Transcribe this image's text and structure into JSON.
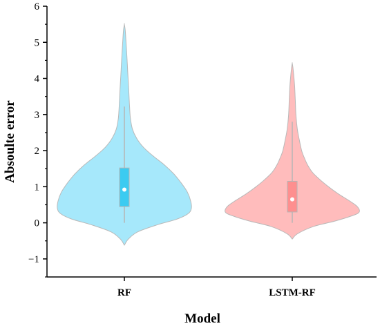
{
  "chart_data": {
    "type": "violin",
    "xlabel": "Model",
    "ylabel": "Absoulte error",
    "ylim": [
      -1.5,
      6
    ],
    "yticks": [
      -1,
      0,
      1,
      2,
      3,
      4,
      5,
      6
    ],
    "ytick_labels": [
      "−1",
      "0",
      "1",
      "2",
      "3",
      "4",
      "5",
      "6"
    ],
    "grid": false,
    "categories": [
      "RF",
      "LSTM-RF"
    ],
    "series": [
      {
        "category": "RF",
        "color": "#a6e8fb",
        "box_color": "#3ccbf1",
        "median": 0.92,
        "q1": 0.45,
        "q3": 1.52,
        "whisker_low": 0.0,
        "whisker_high": 3.22,
        "min": -0.62,
        "max": 5.5,
        "density": [
          [
            -0.62,
            0.0
          ],
          [
            -0.45,
            0.06
          ],
          [
            -0.25,
            0.2
          ],
          [
            -0.05,
            0.5
          ],
          [
            0.1,
            0.78
          ],
          [
            0.25,
            0.95
          ],
          [
            0.4,
            1.0
          ],
          [
            0.6,
            0.99
          ],
          [
            0.85,
            0.94
          ],
          [
            1.1,
            0.85
          ],
          [
            1.35,
            0.74
          ],
          [
            1.6,
            0.6
          ],
          [
            1.85,
            0.43
          ],
          [
            2.1,
            0.28
          ],
          [
            2.35,
            0.18
          ],
          [
            2.6,
            0.12
          ],
          [
            2.9,
            0.09
          ],
          [
            3.3,
            0.075
          ],
          [
            3.7,
            0.065
          ],
          [
            4.2,
            0.05
          ],
          [
            4.7,
            0.035
          ],
          [
            5.1,
            0.022
          ],
          [
            5.35,
            0.012
          ],
          [
            5.5,
            0.0
          ]
        ]
      },
      {
        "category": "LSTM-RF",
        "color": "#ffbcbc",
        "box_color": "#fe8f8f",
        "median": 0.65,
        "q1": 0.3,
        "q3": 1.15,
        "whisker_low": 0.0,
        "whisker_high": 2.8,
        "min": -0.45,
        "max": 4.42,
        "density": [
          [
            -0.45,
            0.0
          ],
          [
            -0.3,
            0.08
          ],
          [
            -0.1,
            0.32
          ],
          [
            0.05,
            0.64
          ],
          [
            0.2,
            0.9
          ],
          [
            0.3,
            1.0
          ],
          [
            0.45,
            0.97
          ],
          [
            0.6,
            0.86
          ],
          [
            0.8,
            0.69
          ],
          [
            1.0,
            0.54
          ],
          [
            1.2,
            0.41
          ],
          [
            1.4,
            0.3
          ],
          [
            1.6,
            0.23
          ],
          [
            1.8,
            0.18
          ],
          [
            2.0,
            0.14
          ],
          [
            2.3,
            0.105
          ],
          [
            2.6,
            0.075
          ],
          [
            3.0,
            0.055
          ],
          [
            3.4,
            0.045
          ],
          [
            3.8,
            0.035
          ],
          [
            4.1,
            0.022
          ],
          [
            4.3,
            0.01
          ],
          [
            4.42,
            0.0
          ]
        ]
      }
    ]
  }
}
